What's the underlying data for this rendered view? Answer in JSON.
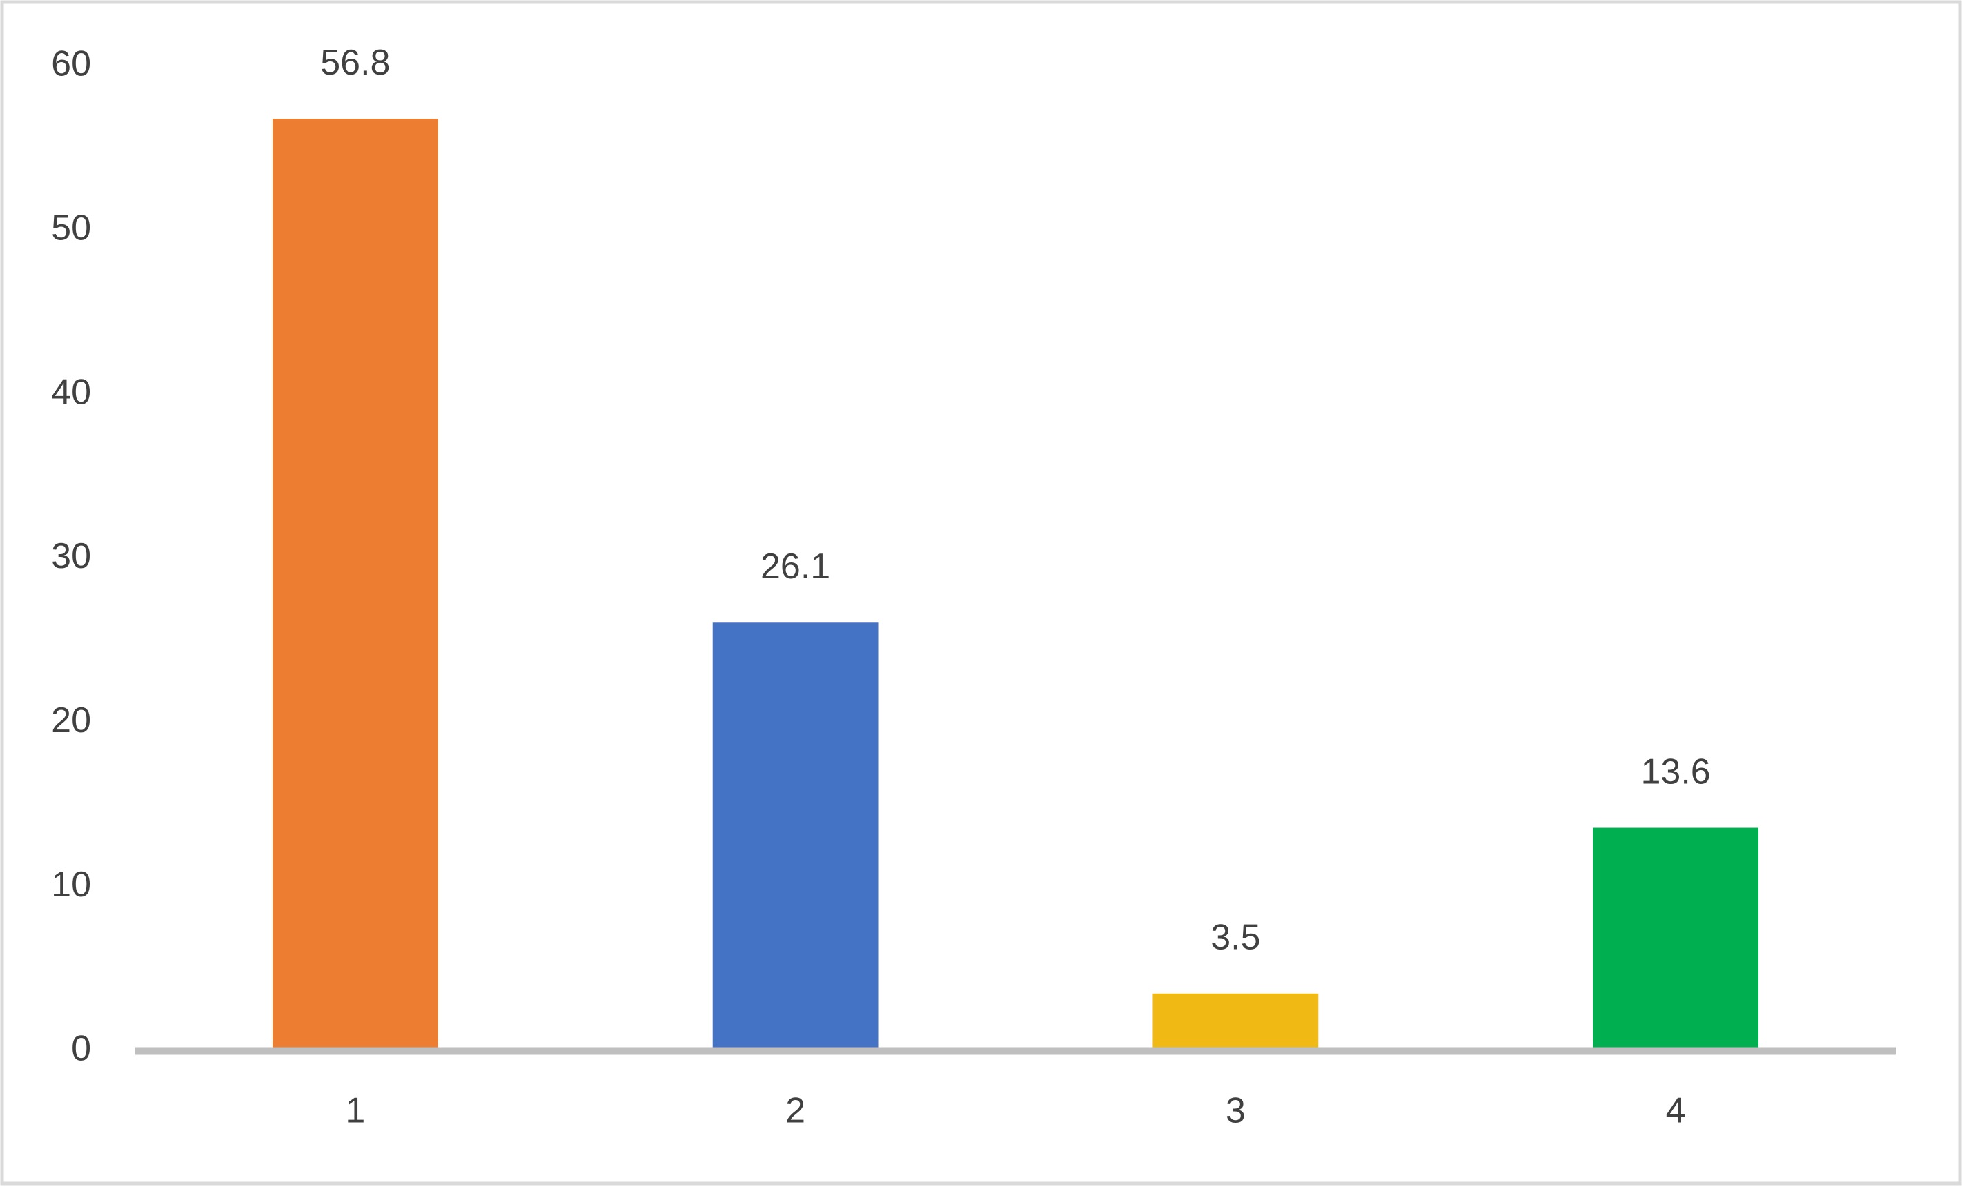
{
  "chart_data": {
    "type": "bar",
    "categories": [
      "1",
      "2",
      "3",
      "4"
    ],
    "values": [
      56.8,
      26.1,
      3.5,
      13.6
    ],
    "colors": [
      "#ed7d31",
      "#4472c4",
      "#f0b914",
      "#00b050"
    ],
    "ylim": [
      0,
      60
    ],
    "yticks": [
      0,
      10,
      20,
      30,
      40,
      50,
      60
    ],
    "grid": false
  }
}
